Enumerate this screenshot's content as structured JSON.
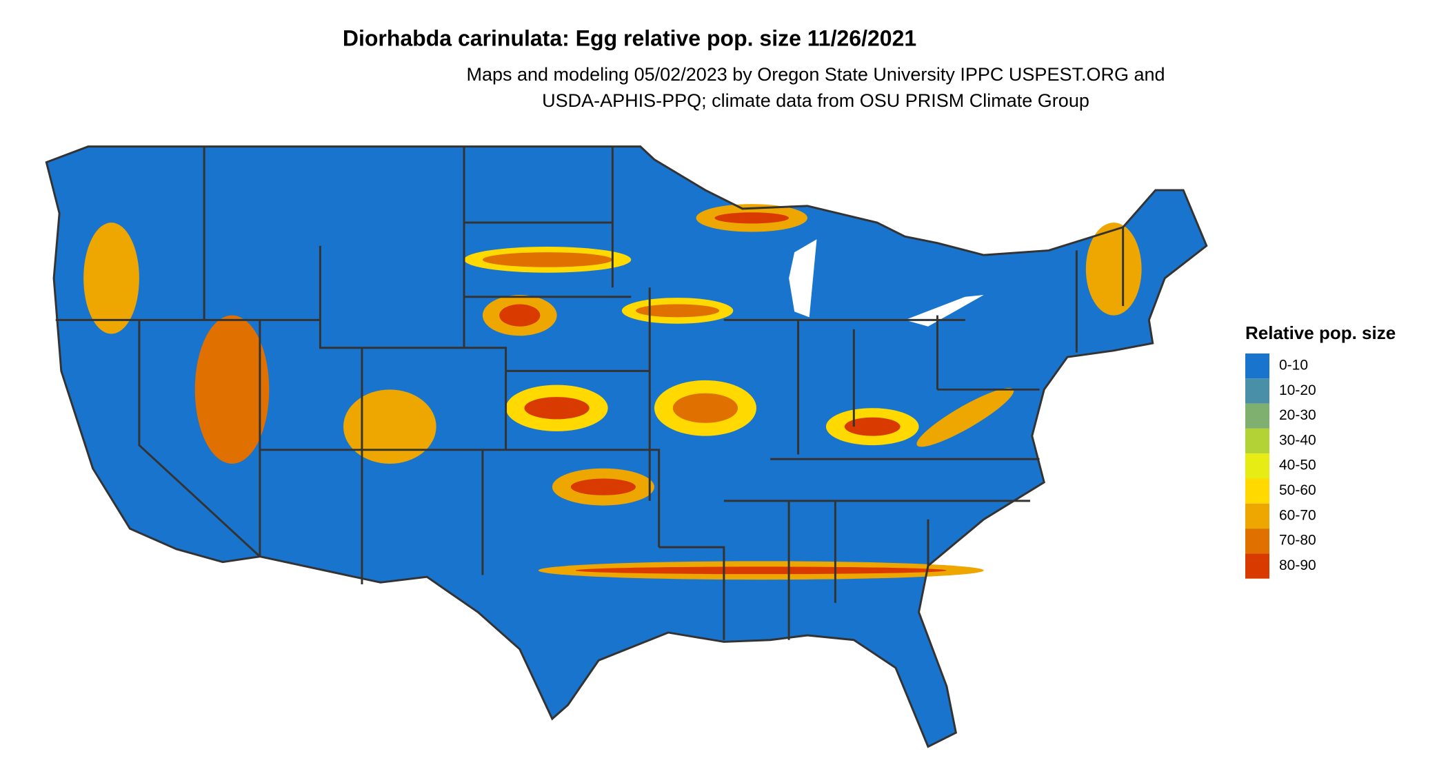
{
  "header": {
    "title": "Diorhabda carinulata: Egg relative pop. size 11/26/2021",
    "subtitle": [
      "Maps and modeling 05/02/2023 by Oregon State University IPPC USPEST.ORG and",
      "USDA-APHIS-PPQ; climate data from OSU PRISM Climate Group"
    ]
  },
  "legend": {
    "title": "Relative pop. size",
    "items": [
      {
        "label": "0-10",
        "color": "#1874cd"
      },
      {
        "label": "10-20",
        "color": "#4a8fa8"
      },
      {
        "label": "20-30",
        "color": "#80b070"
      },
      {
        "label": "30-40",
        "color": "#b3d236"
      },
      {
        "label": "40-50",
        "color": "#e6ec14"
      },
      {
        "label": "50-60",
        "color": "#ffd900"
      },
      {
        "label": "60-70",
        "color": "#eea600"
      },
      {
        "label": "70-80",
        "color": "#e07000"
      },
      {
        "label": "80-90",
        "color": "#d93a00"
      }
    ]
  }
}
